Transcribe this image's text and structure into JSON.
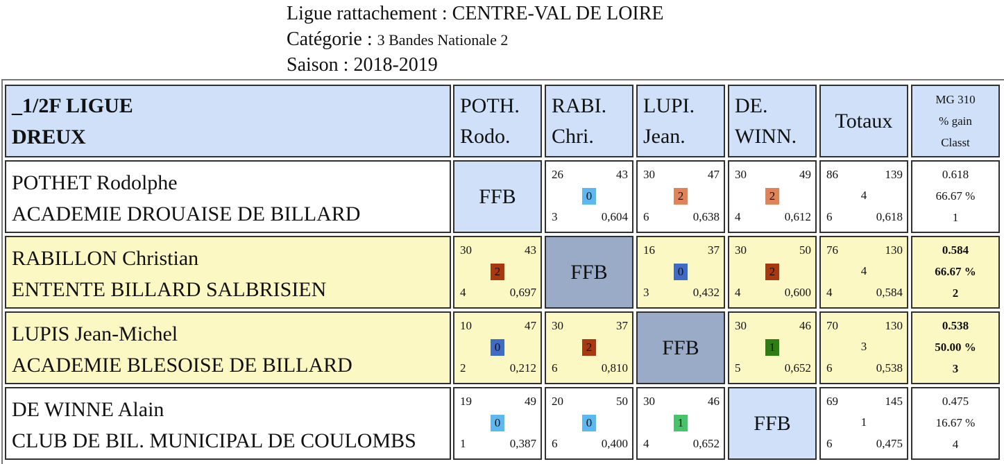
{
  "header": {
    "ligue_line": "Ligue rattachement : CENTRE-VAL DE LOIRE",
    "categorie_label": "Catégorie : ",
    "categorie_value": "3 Bandes Nationale 2",
    "saison_line": "Saison : 2018-2019"
  },
  "table": {
    "team_line1": "_1/2F LIGUE",
    "team_line2": "DREUX",
    "columns": [
      {
        "line1": "POTH.",
        "line2": "Rodo."
      },
      {
        "line1": "RABI.",
        "line2": "Chri."
      },
      {
        "line1": "LUPI.",
        "line2": "Jean."
      },
      {
        "line1": "DE.",
        "line2": "WINN."
      }
    ],
    "totals_header": "Totaux",
    "mg_header": {
      "line1": "MG 310",
      "line2": "% gain",
      "line3": "Classt"
    },
    "ffb_label": "FFB",
    "colors": {
      "badge_0_light": "#5bb8f0",
      "badge_0_dark": "#3f6bc4",
      "badge_2_light": "#e08358",
      "badge_2_dark": "#a8380f",
      "badge_1_light": "#47c46b",
      "badge_1_dark": "#2e7d14",
      "row_yellow": "#fbf8c4",
      "cell_blue": "#cfe0f8",
      "ffb_gray": "#9aabc7"
    },
    "rows": [
      {
        "name": "POTHET Rodolphe",
        "club": "ACADEMIE DROUAISE DE BILLARD",
        "matches": [
          null,
          {
            "points": "26",
            "distance": "43",
            "badge": "0",
            "reprises": "3",
            "average": "0,604"
          },
          {
            "points": "30",
            "distance": "47",
            "badge": "2",
            "reprises": "6",
            "average": "0,638"
          },
          {
            "points": "30",
            "distance": "49",
            "badge": "2",
            "reprises": "4",
            "average": "0,612"
          }
        ],
        "totals": {
          "points": "86",
          "distance": "139",
          "match_points": "4",
          "reprises": "6",
          "average": "0,618"
        },
        "mg": {
          "value": "0.618",
          "pct": "66.67 %",
          "rank": "1"
        }
      },
      {
        "name": "RABILLON Christian",
        "club": "ENTENTE BILLARD SALBRISIEN",
        "matches": [
          {
            "points": "30",
            "distance": "43",
            "badge": "2",
            "reprises": "4",
            "average": "0,697"
          },
          null,
          {
            "points": "16",
            "distance": "37",
            "badge": "0",
            "reprises": "3",
            "average": "0,432"
          },
          {
            "points": "30",
            "distance": "50",
            "badge": "2",
            "reprises": "4",
            "average": "0,600"
          }
        ],
        "totals": {
          "points": "76",
          "distance": "130",
          "match_points": "4",
          "reprises": "4",
          "average": "0,584"
        },
        "mg": {
          "value": "0.584",
          "pct": "66.67 %",
          "rank": "2"
        }
      },
      {
        "name": "LUPIS Jean-Michel",
        "club": "ACADEMIE BLESOISE DE BILLARD",
        "matches": [
          {
            "points": "10",
            "distance": "47",
            "badge": "0",
            "reprises": "2",
            "average": "0,212"
          },
          {
            "points": "30",
            "distance": "37",
            "badge": "2",
            "reprises": "6",
            "average": "0,810"
          },
          null,
          {
            "points": "30",
            "distance": "46",
            "badge": "1",
            "reprises": "5",
            "average": "0,652"
          }
        ],
        "totals": {
          "points": "70",
          "distance": "130",
          "match_points": "3",
          "reprises": "6",
          "average": "0,538"
        },
        "mg": {
          "value": "0.538",
          "pct": "50.00 %",
          "rank": "3"
        }
      },
      {
        "name": "DE WINNE Alain",
        "club": "CLUB DE BIL. MUNICIPAL DE COULOMBS",
        "matches": [
          {
            "points": "19",
            "distance": "49",
            "badge": "0",
            "reprises": "1",
            "average": "0,387"
          },
          {
            "points": "20",
            "distance": "50",
            "badge": "0",
            "reprises": "6",
            "average": "0,400"
          },
          {
            "points": "30",
            "distance": "46",
            "badge": "1",
            "reprises": "4",
            "average": "0,652"
          },
          null
        ],
        "totals": {
          "points": "69",
          "distance": "145",
          "match_points": "1",
          "reprises": "6",
          "average": "0,475"
        },
        "mg": {
          "value": "0.475",
          "pct": "16.67 %",
          "rank": "4"
        }
      }
    ]
  }
}
